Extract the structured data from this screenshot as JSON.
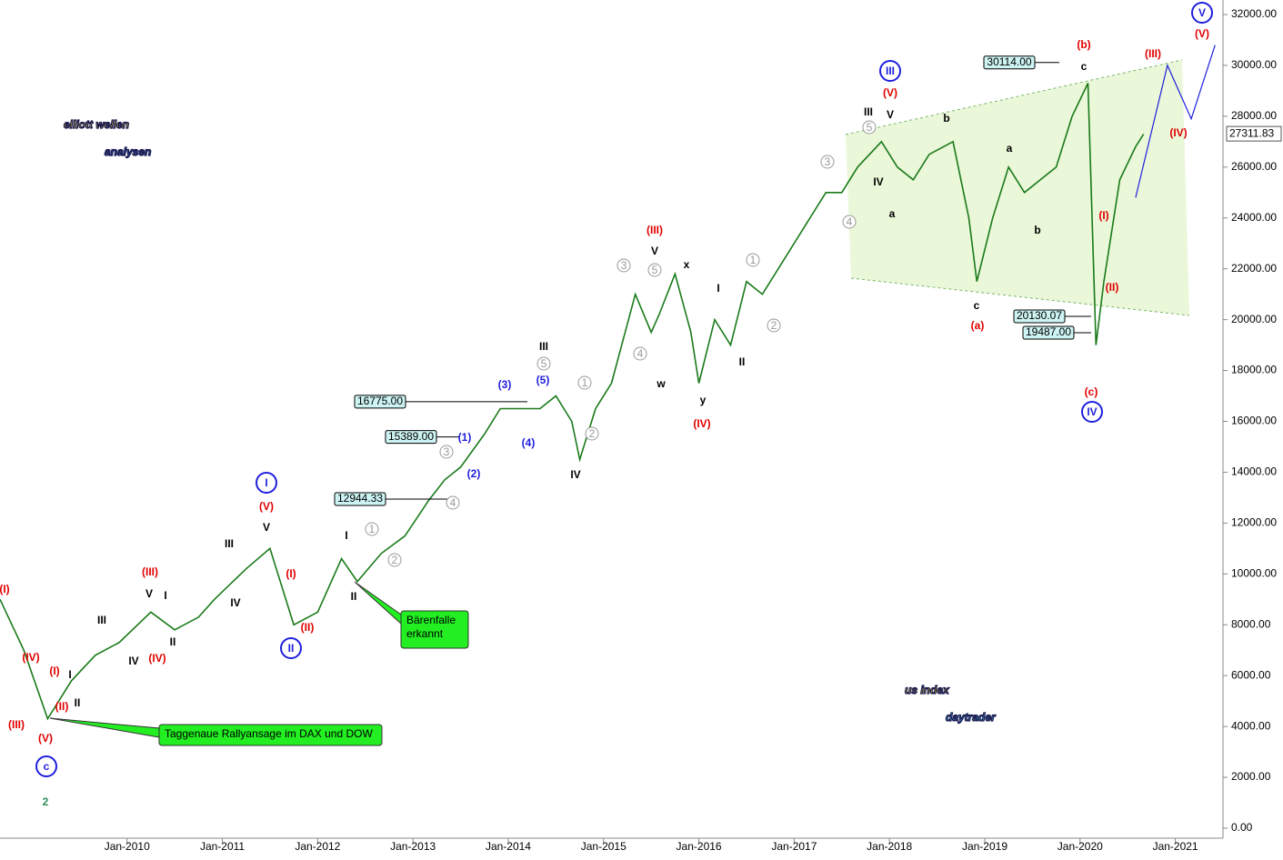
{
  "chart_data": {
    "type": "line",
    "x": [
      "2008-09",
      "2008-12",
      "2009-03",
      "2009-06",
      "2009-09",
      "2009-12",
      "2010-04",
      "2010-07",
      "2010-10",
      "2010-12",
      "2011-04",
      "2011-07",
      "2011-10",
      "2012-01",
      "2012-04",
      "2012-06",
      "2012-09",
      "2012-12",
      "2013-03",
      "2013-05",
      "2013-07",
      "2013-10",
      "2013-12",
      "2014-02",
      "2014-05",
      "2014-07",
      "2014-09",
      "2014-10",
      "2014-12",
      "2015-02",
      "2015-05",
      "2015-07",
      "2015-08",
      "2015-10",
      "2015-12",
      "2016-01",
      "2016-03",
      "2016-05",
      "2016-07",
      "2016-09",
      "2016-11",
      "2017-02",
      "2017-05",
      "2017-07",
      "2017-09",
      "2017-12",
      "2018-02",
      "2018-04",
      "2018-06",
      "2018-09",
      "2018-11",
      "2018-12",
      "2019-02",
      "2019-04",
      "2019-06",
      "2019-08",
      "2019-10",
      "2019-12",
      "2020-02",
      "2020-03",
      "2020-04",
      "2020-06",
      "2020-08",
      "2020-09"
    ],
    "series": [
      {
        "color": "#1a7a1a",
        "values": [
          9000,
          7000,
          4300,
          5800,
          6800,
          7300,
          8500,
          7800,
          8300,
          9000,
          10200,
          11000,
          8000,
          8500,
          10600,
          9700,
          10800,
          11500,
          12900,
          13700,
          14200,
          15500,
          16500,
          16500,
          16500,
          17000,
          16000,
          14500,
          16500,
          17500,
          21000,
          19500,
          20200,
          21800,
          19500,
          17500,
          20000,
          19000,
          21500,
          21000,
          22000,
          23500,
          25000,
          25000,
          26000,
          27000,
          26000,
          25500,
          26500,
          27000,
          24000,
          21500,
          24000,
          26000,
          25000,
          25500,
          26000,
          28000,
          29300,
          19000,
          21500,
          25500,
          26800,
          27300
        ]
      }
    ],
    "projection": {
      "color": "#1f1fdd",
      "x": [
        "2020-08",
        "2020-12",
        "2021-03",
        "2021-06"
      ],
      "values": [
        24800,
        30000,
        27900,
        30800
      ]
    },
    "xlim": [
      "2008-09",
      "2021-07"
    ],
    "xticks": [
      {
        "value": "2010-01",
        "label": "Jan-2010"
      },
      {
        "value": "2011-01",
        "label": "Jan-2011"
      },
      {
        "value": "2012-01",
        "label": "Jan-2012"
      },
      {
        "value": "2013-01",
        "label": "Jan-2013"
      },
      {
        "value": "2014-01",
        "label": "Jan-2014"
      },
      {
        "value": "2015-01",
        "label": "Jan-2015"
      },
      {
        "value": "2016-01",
        "label": "Jan-2016"
      },
      {
        "value": "2017-01",
        "label": "Jan-2017"
      },
      {
        "value": "2018-01",
        "label": "Jan-2018"
      },
      {
        "value": "2019-01",
        "label": "Jan-2019"
      },
      {
        "value": "2020-01",
        "label": "Jan-2020"
      },
      {
        "value": "2021-01",
        "label": "Jan-2021"
      }
    ],
    "ylim": [
      0,
      32000
    ],
    "yticks": [
      {
        "value": 0,
        "label": "0.00"
      },
      {
        "value": 2000,
        "label": "2000.00"
      },
      {
        "value": 4000,
        "label": "4000.00"
      },
      {
        "value": 6000,
        "label": "6000.00"
      },
      {
        "value": 8000,
        "label": "8000.00"
      },
      {
        "value": 10000,
        "label": "10000.00"
      },
      {
        "value": 12000,
        "label": "12000.00"
      },
      {
        "value": 14000,
        "label": "14000.00"
      },
      {
        "value": 16000,
        "label": "16000.00"
      },
      {
        "value": 18000,
        "label": "18000.00"
      },
      {
        "value": 20000,
        "label": "20000.00"
      },
      {
        "value": 22000,
        "label": "22000.00"
      },
      {
        "value": 24000,
        "label": "24000.00"
      },
      {
        "value": 26000,
        "label": "26000.00"
      },
      {
        "value": 28000,
        "label": "28000.00"
      },
      {
        "value": 30000,
        "label": "30000.00"
      },
      {
        "value": 32000,
        "label": "32000.00"
      }
    ],
    "last_price": {
      "value": 27311.83,
      "label": "27311.83"
    },
    "levels": [
      {
        "value": 30114,
        "label": "30114.00"
      },
      {
        "value": 16775,
        "label": "16775.00"
      },
      {
        "value": 15389,
        "label": "15389.00"
      },
      {
        "value": 12944.33,
        "label": "12944.33"
      },
      {
        "value": 20130.07,
        "label": "20130.07"
      },
      {
        "value": 19487,
        "label": "19487.00"
      }
    ],
    "annotations": [
      {
        "text": "(I)",
        "color": "#e00000"
      },
      {
        "text": "(III)",
        "color": "#e00000"
      },
      {
        "text": "(IV)",
        "color": "#e00000"
      },
      {
        "text": "(I)",
        "color": "#e00000"
      },
      {
        "text": "(II)",
        "color": "#e00000"
      },
      {
        "text": "(III)",
        "color": "#e00000"
      },
      {
        "text": "(V)",
        "color": "#e00000"
      },
      {
        "text": "(IV)",
        "color": "#e00000"
      },
      {
        "text": "(V)",
        "color": "#e00000"
      },
      {
        "text": "(I)",
        "color": "#e00000"
      },
      {
        "text": "(II)",
        "color": "#e00000"
      },
      {
        "text": "(III)",
        "color": "#e00000"
      },
      {
        "text": "(IV)",
        "color": "#e00000"
      },
      {
        "text": "(V)",
        "color": "#e00000"
      },
      {
        "text": "(a)",
        "color": "#e00000"
      },
      {
        "text": "(b)",
        "color": "#e00000"
      },
      {
        "text": "(c)",
        "color": "#e00000"
      },
      {
        "text": "(III)",
        "color": "#e00000"
      },
      {
        "text": "(V)",
        "color": "#e00000"
      },
      {
        "text": "(IV)",
        "color": "#e00000"
      },
      {
        "text": "(I)",
        "color": "#e00000"
      },
      {
        "text": "(II)",
        "color": "#e00000"
      },
      {
        "text": "III",
        "color": "#000000"
      },
      {
        "text": "IV",
        "color": "#000000"
      },
      {
        "text": "V",
        "color": "#000000"
      },
      {
        "text": "I",
        "color": "#000000"
      },
      {
        "text": "II",
        "color": "#000000"
      },
      {
        "text": "I",
        "color": "#000000"
      },
      {
        "text": "II",
        "color": "#000000"
      },
      {
        "text": "III",
        "color": "#000000"
      },
      {
        "text": "IV",
        "color": "#000000"
      },
      {
        "text": "V",
        "color": "#000000"
      },
      {
        "text": "I",
        "color": "#000000"
      },
      {
        "text": "II",
        "color": "#000000"
      },
      {
        "text": "III",
        "color": "#000000"
      },
      {
        "text": "IV",
        "color": "#000000"
      },
      {
        "text": "V",
        "color": "#000000"
      },
      {
        "text": "w",
        "color": "#000000"
      },
      {
        "text": "x",
        "color": "#000000"
      },
      {
        "text": "y",
        "color": "#000000"
      },
      {
        "text": "I",
        "color": "#000000"
      },
      {
        "text": "II",
        "color": "#000000"
      },
      {
        "text": "III",
        "color": "#000000"
      },
      {
        "text": "V",
        "color": "#000000"
      },
      {
        "text": "IV",
        "color": "#000000"
      },
      {
        "text": "a",
        "color": "#000000"
      },
      {
        "text": "b",
        "color": "#000000"
      },
      {
        "text": "c",
        "color": "#000000"
      },
      {
        "text": "a",
        "color": "#000000"
      },
      {
        "text": "b",
        "color": "#000000"
      },
      {
        "text": "c",
        "color": "#000000"
      },
      {
        "text": "(3)",
        "color": "#1f1fdd"
      },
      {
        "text": "(5)",
        "color": "#1f1fdd"
      },
      {
        "text": "(4)",
        "color": "#1f1fdd"
      },
      {
        "text": "(1)",
        "color": "#1f1fdd"
      },
      {
        "text": "(2)",
        "color": "#1f1fdd"
      },
      {
        "text": "1",
        "color": "#999999",
        "circled": true
      },
      {
        "text": "2",
        "color": "#999999",
        "circled": true
      },
      {
        "text": "3",
        "color": "#999999",
        "circled": true
      },
      {
        "text": "4",
        "color": "#999999",
        "circled": true
      },
      {
        "text": "5",
        "color": "#999999",
        "circled": true
      },
      {
        "text": "1",
        "color": "#999999",
        "circled": true
      },
      {
        "text": "2",
        "color": "#999999",
        "circled": true
      },
      {
        "text": "3",
        "color": "#999999",
        "circled": true
      },
      {
        "text": "4",
        "color": "#999999",
        "circled": true
      },
      {
        "text": "5",
        "color": "#999999",
        "circled": true
      },
      {
        "text": "1",
        "color": "#999999",
        "circled": true
      },
      {
        "text": "2",
        "color": "#999999",
        "circled": true
      },
      {
        "text": "3",
        "color": "#999999",
        "circled": true
      },
      {
        "text": "4",
        "color": "#999999",
        "circled": true
      },
      {
        "text": "5",
        "color": "#999999",
        "circled": true
      },
      {
        "text": "V",
        "color": "#1f1fdd",
        "circled": true
      },
      {
        "text": "III",
        "color": "#1f1fdd",
        "circled": true
      },
      {
        "text": "IV",
        "color": "#1f1fdd",
        "circled": true
      },
      {
        "text": "I",
        "color": "#1f1fdd",
        "circled": true
      },
      {
        "text": "II",
        "color": "#1f1fdd",
        "circled": true
      },
      {
        "text": "c",
        "color": "#1f1fdd",
        "circled": true
      },
      {
        "text": "2",
        "color": "#2e8b57"
      }
    ],
    "callouts": [
      [
        "Taggenaue Rallyansage im DAX und DOW"
      ],
      [
        "Bärenfalle",
        "erkannt"
      ]
    ],
    "logos": [
      [
        "elliott wellen",
        "analysen"
      ],
      [
        "us index",
        "daytrader"
      ]
    ]
  }
}
